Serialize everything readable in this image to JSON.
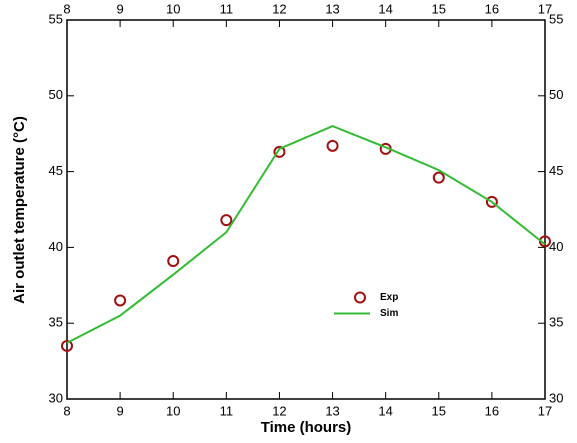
{
  "chart_data": {
    "type": "line",
    "xlabel": "Time (hours)",
    "ylabel": "Air outlet temperature (°C)",
    "x": [
      8,
      9,
      10,
      11,
      12,
      13,
      14,
      15,
      16,
      17
    ],
    "series": [
      {
        "name": "Exp",
        "style": "marker",
        "color": "#a01010",
        "values": [
          33.5,
          36.5,
          39.1,
          41.8,
          46.3,
          46.7,
          46.5,
          44.6,
          43.0,
          40.4
        ]
      },
      {
        "name": "Sim",
        "style": "line",
        "color": "#33bb33",
        "values": [
          33.7,
          35.5,
          38.2,
          41.0,
          46.5,
          48.0,
          46.6,
          45.1,
          43.0,
          40.2
        ]
      }
    ],
    "xlim": [
      8,
      17
    ],
    "ylim": [
      30,
      55
    ],
    "xticks": [
      8,
      9,
      10,
      11,
      12,
      13,
      14,
      15,
      16,
      17
    ],
    "yticks": [
      30,
      35,
      40,
      45,
      50,
      55
    ],
    "mirror_ticks": true,
    "legend": "center"
  }
}
